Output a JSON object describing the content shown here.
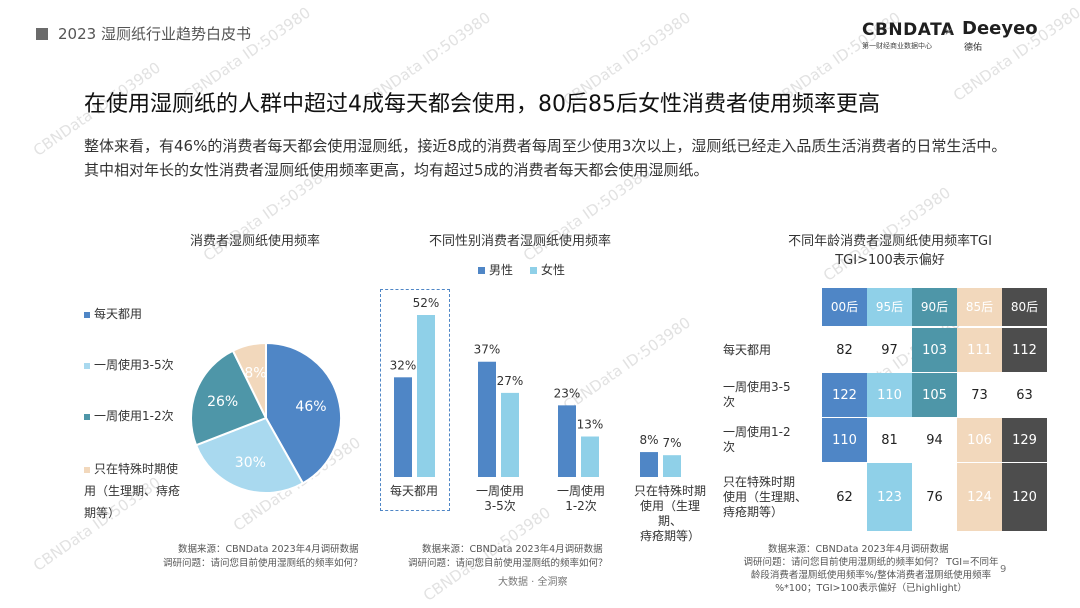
{
  "header": {
    "title": "2023 湿厕纸行业趋势白皮书"
  },
  "logos": {
    "cbn": "CBNDATA",
    "cbn_sub": "第一财经商业数据中心",
    "x": "×",
    "deeyeo": "Deeyeo",
    "deeyeo_sub": "德佑"
  },
  "main_title": "在使用湿厕纸的人群中超过4成每天都会使用，80后85后女性消费者使用频率更高",
  "summary": "整体来看，有46%的消费者每天都会使用湿厕纸，接近8成的消费者每周至少使用3次以上，湿厕纸已经走入品质生活消费者的日常生活中。其中相对年长的女性消费者湿厕纸使用频率更高，均有超过5成的消费者每天都会使用湿厕纸。",
  "watermark": "CBNData ID:503980",
  "footer": {
    "brand": "大数据 · 全洞察",
    "page": "9"
  },
  "colors": {
    "dark_blue": "#4f86c6",
    "light_blue": "#8fd0e8",
    "teal": "#4e96a8",
    "peach": "#f2d8bc",
    "dark_gray": "#4d4d4d"
  },
  "chart_data": [
    {
      "type": "pie",
      "title": "消费者湿厕纸使用频率",
      "categories": [
        "每天都用",
        "一周使用3-5次",
        "一周使用1-2次",
        "只在特殊时期使用（生理期、痔疮期等）"
      ],
      "values": [
        46,
        30,
        26,
        8
      ],
      "labels": [
        "46%",
        "30%",
        "26%",
        "8%"
      ],
      "colors": [
        "#4f86c6",
        "#a9d9ef",
        "#4e96a8",
        "#f2d8bc"
      ],
      "legend_position": "left",
      "source": "数据来源：CBNData 2023年4月调研数据",
      "question": "调研问题：请问您目前使用湿厕纸的频率如何？"
    },
    {
      "type": "bar",
      "title": "不同性别消费者湿厕纸使用频率",
      "categories": [
        "每天都用",
        "一周使用3-5次",
        "一周使用1-2次",
        "只在特殊时期使用（生理期、痔疮期等）"
      ],
      "category_lines": [
        [
          "每天都用"
        ],
        [
          "一周使用",
          "3-5次"
        ],
        [
          "一周使用",
          "1-2次"
        ],
        [
          "只在特殊时期",
          "使用（生理期、",
          "痔疮期等）"
        ]
      ],
      "series": [
        {
          "name": "男性",
          "values": [
            32,
            37,
            23,
            8
          ],
          "labels": [
            "32%",
            "37%",
            "23%",
            "8%"
          ],
          "color": "#4f86c6"
        },
        {
          "name": "女性",
          "values": [
            52,
            27,
            13,
            7
          ],
          "labels": [
            "52%",
            "27%",
            "13%",
            "7%"
          ],
          "color": "#8fd0e8"
        }
      ],
      "ylim": [
        0,
        60
      ],
      "legend_position": "top",
      "highlight_category": "每天都用",
      "source": "数据来源：CBNData 2023年4月调研数据",
      "question": "调研问题：请问您目前使用湿厕纸的频率如何？"
    },
    {
      "type": "heatmap",
      "title": "不同年龄消费者湿厕纸使用频率TGI",
      "subtitle": "TGI>100表示偏好",
      "columns": [
        {
          "label": "00后",
          "lines": [
            "00",
            "后"
          ],
          "color": "#4f86c6"
        },
        {
          "label": "95后",
          "lines": [
            "95",
            "后"
          ],
          "color": "#8fd0e8"
        },
        {
          "label": "90后",
          "lines": [
            "90",
            "后"
          ],
          "color": "#4e96a8"
        },
        {
          "label": "85后",
          "lines": [
            "85",
            "后"
          ],
          "color": "#f2d8bc"
        },
        {
          "label": "80后",
          "lines": [
            "80",
            "后"
          ],
          "color": "#4d4d4d"
        }
      ],
      "rows": [
        {
          "label": "每天都用",
          "lines": [
            "每天都用"
          ],
          "values": [
            82,
            97,
            103,
            111,
            112
          ]
        },
        {
          "label": "一周使用3-5次",
          "lines": [
            "一周使用3-5",
            "次"
          ],
          "values": [
            122,
            110,
            105,
            73,
            63
          ]
        },
        {
          "label": "一周使用1-2次",
          "lines": [
            "一周使用1-2",
            "次"
          ],
          "values": [
            110,
            81,
            94,
            106,
            129
          ]
        },
        {
          "label": "只在特殊时期使用（生理期、痔疮期等）",
          "lines": [
            "只在特殊时期",
            "使用（生理期、",
            "痔疮期等）"
          ],
          "values": [
            62,
            123,
            76,
            124,
            120
          ]
        }
      ],
      "highlight_threshold": 100,
      "source": "数据来源：CBNData 2023年4月调研数据",
      "question_lines": [
        "调研问题：请问您目前使用湿厕纸的频率如何？ TGI=不同年",
        "龄段消费者湿厕纸使用频率%/整体消费者湿厕纸使用频率",
        "%*100；TGI>100表示偏好（已highlight）"
      ]
    }
  ]
}
